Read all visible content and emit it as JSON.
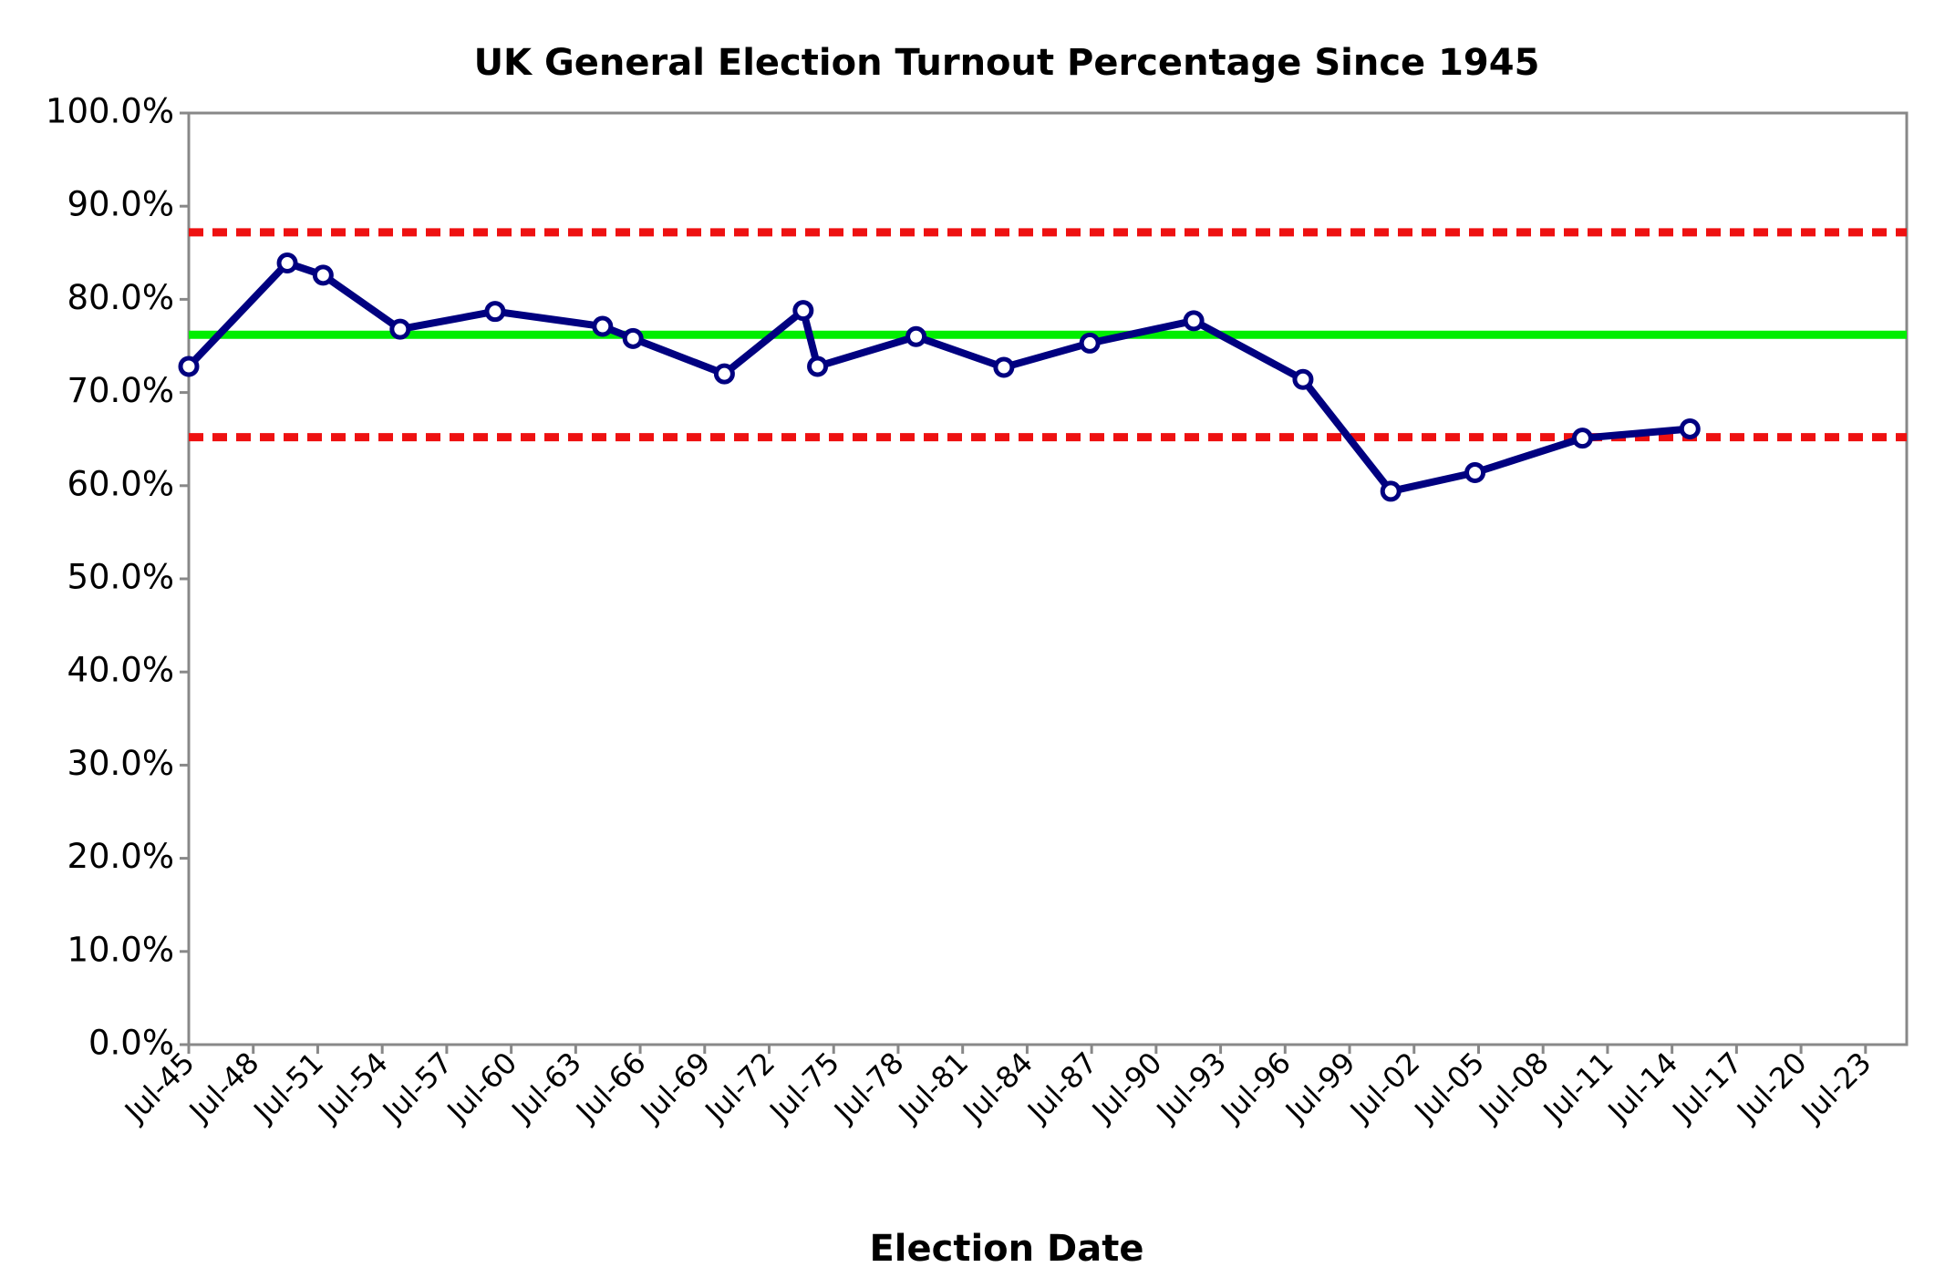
{
  "chart_data": {
    "type": "line",
    "title": "UK General Election Turnout Percentage Since 1945",
    "x_label": "Election Date",
    "x": [
      "1945-07",
      "1950-02",
      "1951-10",
      "1955-05",
      "1959-10",
      "1964-10",
      "1966-03",
      "1970-06",
      "1974-02",
      "1974-10",
      "1979-05",
      "1983-06",
      "1987-06",
      "1992-04",
      "1997-05",
      "2001-06",
      "2005-05",
      "2010-05",
      "2015-05"
    ],
    "series": [
      {
        "color": "#000080",
        "values": [
          72.8,
          83.9,
          82.6,
          76.8,
          78.7,
          77.1,
          75.8,
          72.0,
          78.8,
          72.8,
          76.0,
          72.7,
          75.3,
          77.7,
          71.4,
          59.4,
          61.4,
          65.1,
          66.1
        ]
      }
    ],
    "reference_lines": [
      {
        "value": 76.2,
        "color": "#00ee00",
        "style": "solid"
      },
      {
        "value": 87.2,
        "color": "#ee1111",
        "style": "dashed"
      },
      {
        "value": 65.2,
        "color": "#ee1111",
        "style": "dashed"
      }
    ],
    "xlim": [
      "1945-07",
      "2025-06"
    ],
    "xticks": [
      {
        "value": "1945-07",
        "label": "Jul-45"
      },
      {
        "value": "1948-07",
        "label": "Jul-48"
      },
      {
        "value": "1951-07",
        "label": "Jul-51"
      },
      {
        "value": "1954-07",
        "label": "Jul-54"
      },
      {
        "value": "1957-07",
        "label": "Jul-57"
      },
      {
        "value": "1960-07",
        "label": "Jul-60"
      },
      {
        "value": "1963-07",
        "label": "Jul-63"
      },
      {
        "value": "1966-07",
        "label": "Jul-66"
      },
      {
        "value": "1969-07",
        "label": "Jul-69"
      },
      {
        "value": "1972-07",
        "label": "Jul-72"
      },
      {
        "value": "1975-07",
        "label": "Jul-75"
      },
      {
        "value": "1978-07",
        "label": "Jul-78"
      },
      {
        "value": "1981-07",
        "label": "Jul-81"
      },
      {
        "value": "1984-07",
        "label": "Jul-84"
      },
      {
        "value": "1987-07",
        "label": "Jul-87"
      },
      {
        "value": "1990-07",
        "label": "Jul-90"
      },
      {
        "value": "1993-07",
        "label": "Jul-93"
      },
      {
        "value": "1996-07",
        "label": "Jul-96"
      },
      {
        "value": "1999-07",
        "label": "Jul-99"
      },
      {
        "value": "2002-07",
        "label": "Jul-02"
      },
      {
        "value": "2005-07",
        "label": "Jul-05"
      },
      {
        "value": "2008-07",
        "label": "Jul-08"
      },
      {
        "value": "2011-07",
        "label": "Jul-11"
      },
      {
        "value": "2014-07",
        "label": "Jul-14"
      },
      {
        "value": "2017-07",
        "label": "Jul-17"
      },
      {
        "value": "2020-07",
        "label": "Jul-20"
      },
      {
        "value": "2023-07",
        "label": "Jul-23"
      }
    ],
    "ylim": [
      0,
      100
    ],
    "yticks": [
      {
        "value": 0,
        "label": "0.0%"
      },
      {
        "value": 10,
        "label": "10.0%"
      },
      {
        "value": 20,
        "label": "20.0%"
      },
      {
        "value": 30,
        "label": "30.0%"
      },
      {
        "value": 40,
        "label": "40.0%"
      },
      {
        "value": 50,
        "label": "50.0%"
      },
      {
        "value": 60,
        "label": "60.0%"
      },
      {
        "value": 70,
        "label": "70.0%"
      },
      {
        "value": 80,
        "label": "80.0%"
      },
      {
        "value": 90,
        "label": "90.0%"
      },
      {
        "value": 100,
        "label": "100.0%"
      }
    ],
    "grid": false
  }
}
